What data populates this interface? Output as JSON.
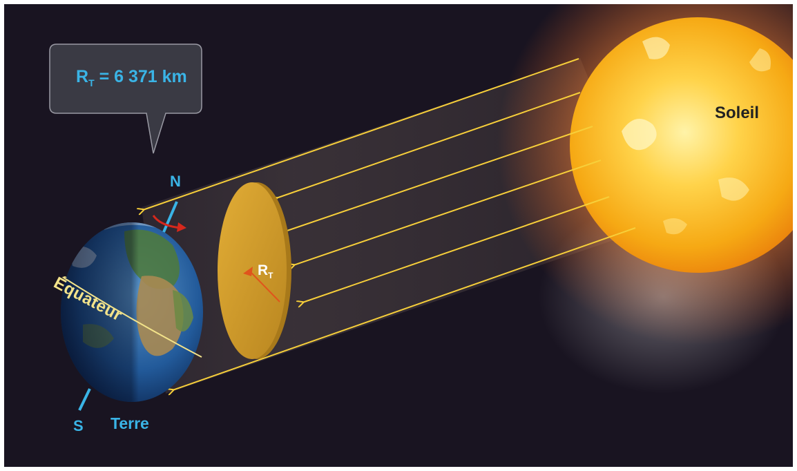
{
  "callout": {
    "text_main": "R",
    "text_sub": "T",
    "text_value": " = 6 371 km"
  },
  "labels": {
    "north": "N",
    "south": "S",
    "earth": "Terre",
    "sun": "Soleil",
    "equator": "Équateur",
    "radius_main": "R",
    "radius_sub": "T"
  },
  "colors": {
    "background": "#191421",
    "sun": "#f6b516",
    "rays": "#f7cf3a",
    "disc": "#cf9a27",
    "label_blue": "#3ab4e6",
    "axis_red": "#d6281c"
  },
  "icons": [
    "earth-globe",
    "sun-sphere",
    "cross-section-disc",
    "rotation-arrow-icon",
    "ray-arrow-icon"
  ]
}
